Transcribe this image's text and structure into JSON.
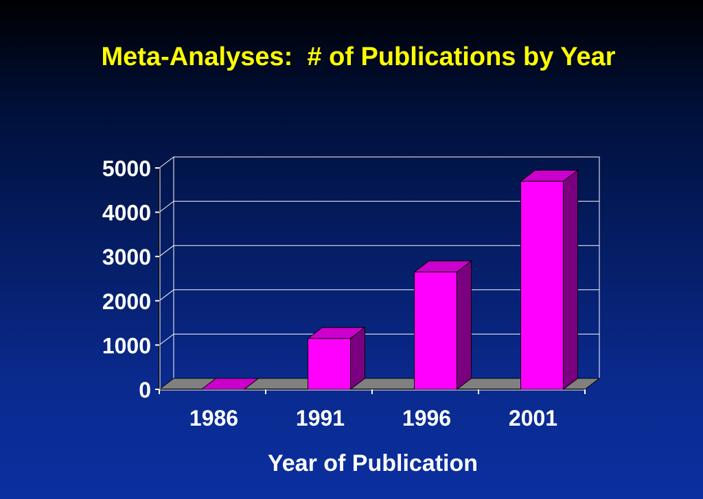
{
  "slide": {
    "background_colors": [
      "#000000",
      "#00103a",
      "#0b2fa0"
    ]
  },
  "chart_data": {
    "type": "bar",
    "title": "Meta-Analyses:  # of Publications by Year",
    "xlabel": "Year of Publication",
    "ylabel": "",
    "categories": [
      "1986",
      "1991",
      "1996",
      "2001"
    ],
    "values": [
      0,
      1150,
      2650,
      4700
    ],
    "ylim": [
      0,
      5000
    ],
    "yticks": [
      "0",
      "1000",
      "2000",
      "3000",
      "4000",
      "5000"
    ],
    "grid": true,
    "legend": "none",
    "colors": {
      "title": "#ffff00",
      "labels": "#ffffff",
      "bar_front": "#ff00ff",
      "bar_top": "#cc00cc",
      "bar_side": "#7a0080",
      "floor": "#808080"
    }
  }
}
